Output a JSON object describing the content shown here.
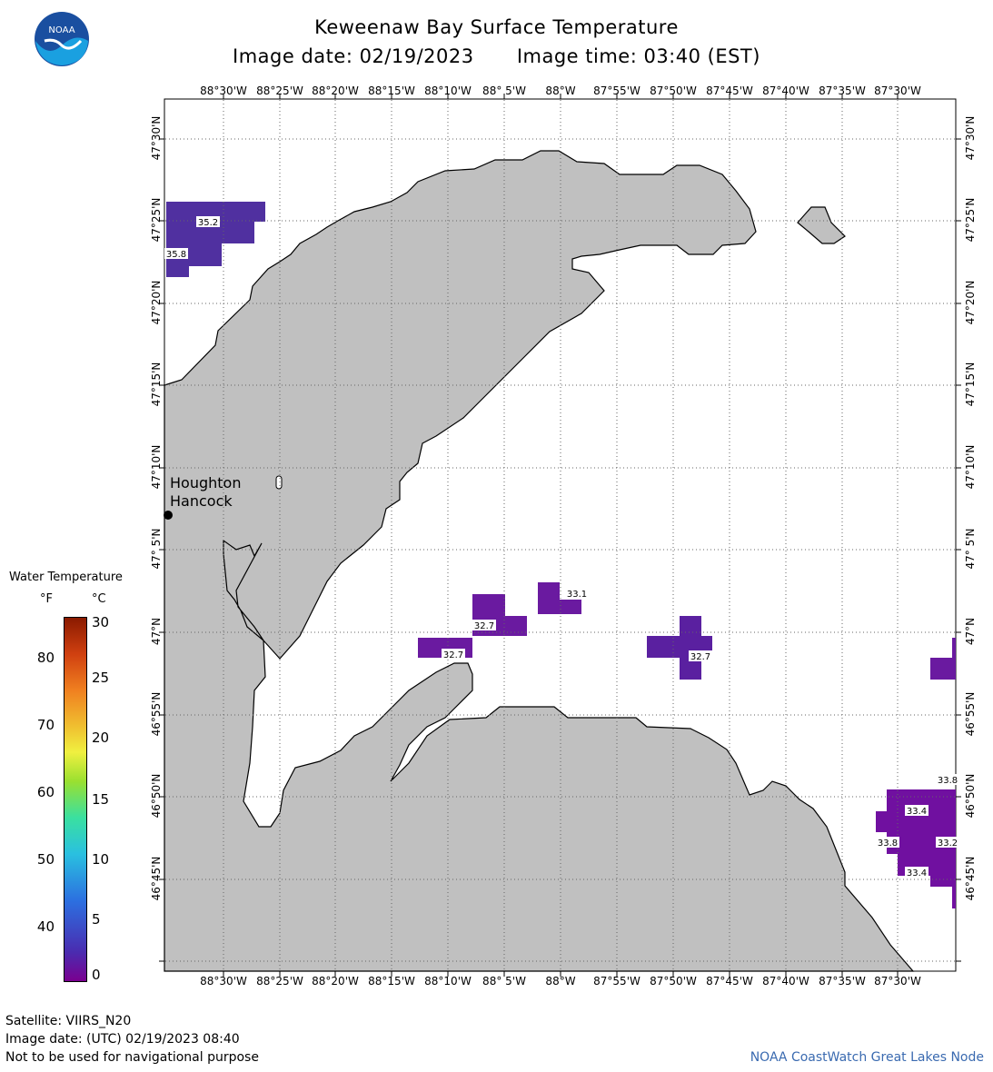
{
  "header": {
    "title": "Keweenaw Bay Surface Temperature",
    "image_date": "Image date: 02/19/2023",
    "image_time": "Image time: 03:40 (EST)"
  },
  "logo": {
    "text": "NOAA",
    "icon": "noaa-logo-icon"
  },
  "axes": {
    "lon_labels": [
      "88°30'W",
      "88°25'W",
      "88°20'W",
      "88°15'W",
      "88°10'W",
      "88° 5'W",
      "88°W",
      "87°55'W",
      "87°50'W",
      "87°45'W",
      "87°40'W",
      "87°35'W",
      "87°30'W"
    ],
    "lat_labels": [
      "47°30'N",
      "47°25'N",
      "47°20'N",
      "47°15'N",
      "47°10'N",
      "47° 5'N",
      "47°N",
      "46°55'N",
      "46°50'N",
      "46°45'N"
    ]
  },
  "places": {
    "houghton": "Houghton",
    "hancock": "Hancock"
  },
  "temperature_labels": [
    "35.2",
    "35.8",
    "33.1",
    "32.7",
    "32.7",
    "32.7",
    "33.8",
    "33.4",
    "33.8",
    "33.2",
    "33.4"
  ],
  "colorbar": {
    "title": "Water Temperature",
    "unit_f": "°F",
    "unit_c": "°C",
    "ticks_f": [
      "80",
      "70",
      "60",
      "50",
      "40"
    ],
    "ticks_c": [
      "30",
      "25",
      "20",
      "15",
      "10",
      "5",
      "0"
    ]
  },
  "footer": {
    "satellite": "Satellite: VIIRS_N20",
    "utc": "Image date: (UTC) 02/19/2023  08:40",
    "disclaimer": "Not to be used for navigational purpose",
    "credit": "NOAA CoastWatch Great Lakes Node"
  },
  "colors": {
    "land": "#c0c0c0",
    "water_cold": "#6a1aa0",
    "water_cold2": "#5030a0",
    "credit": "#3a6ab0"
  }
}
